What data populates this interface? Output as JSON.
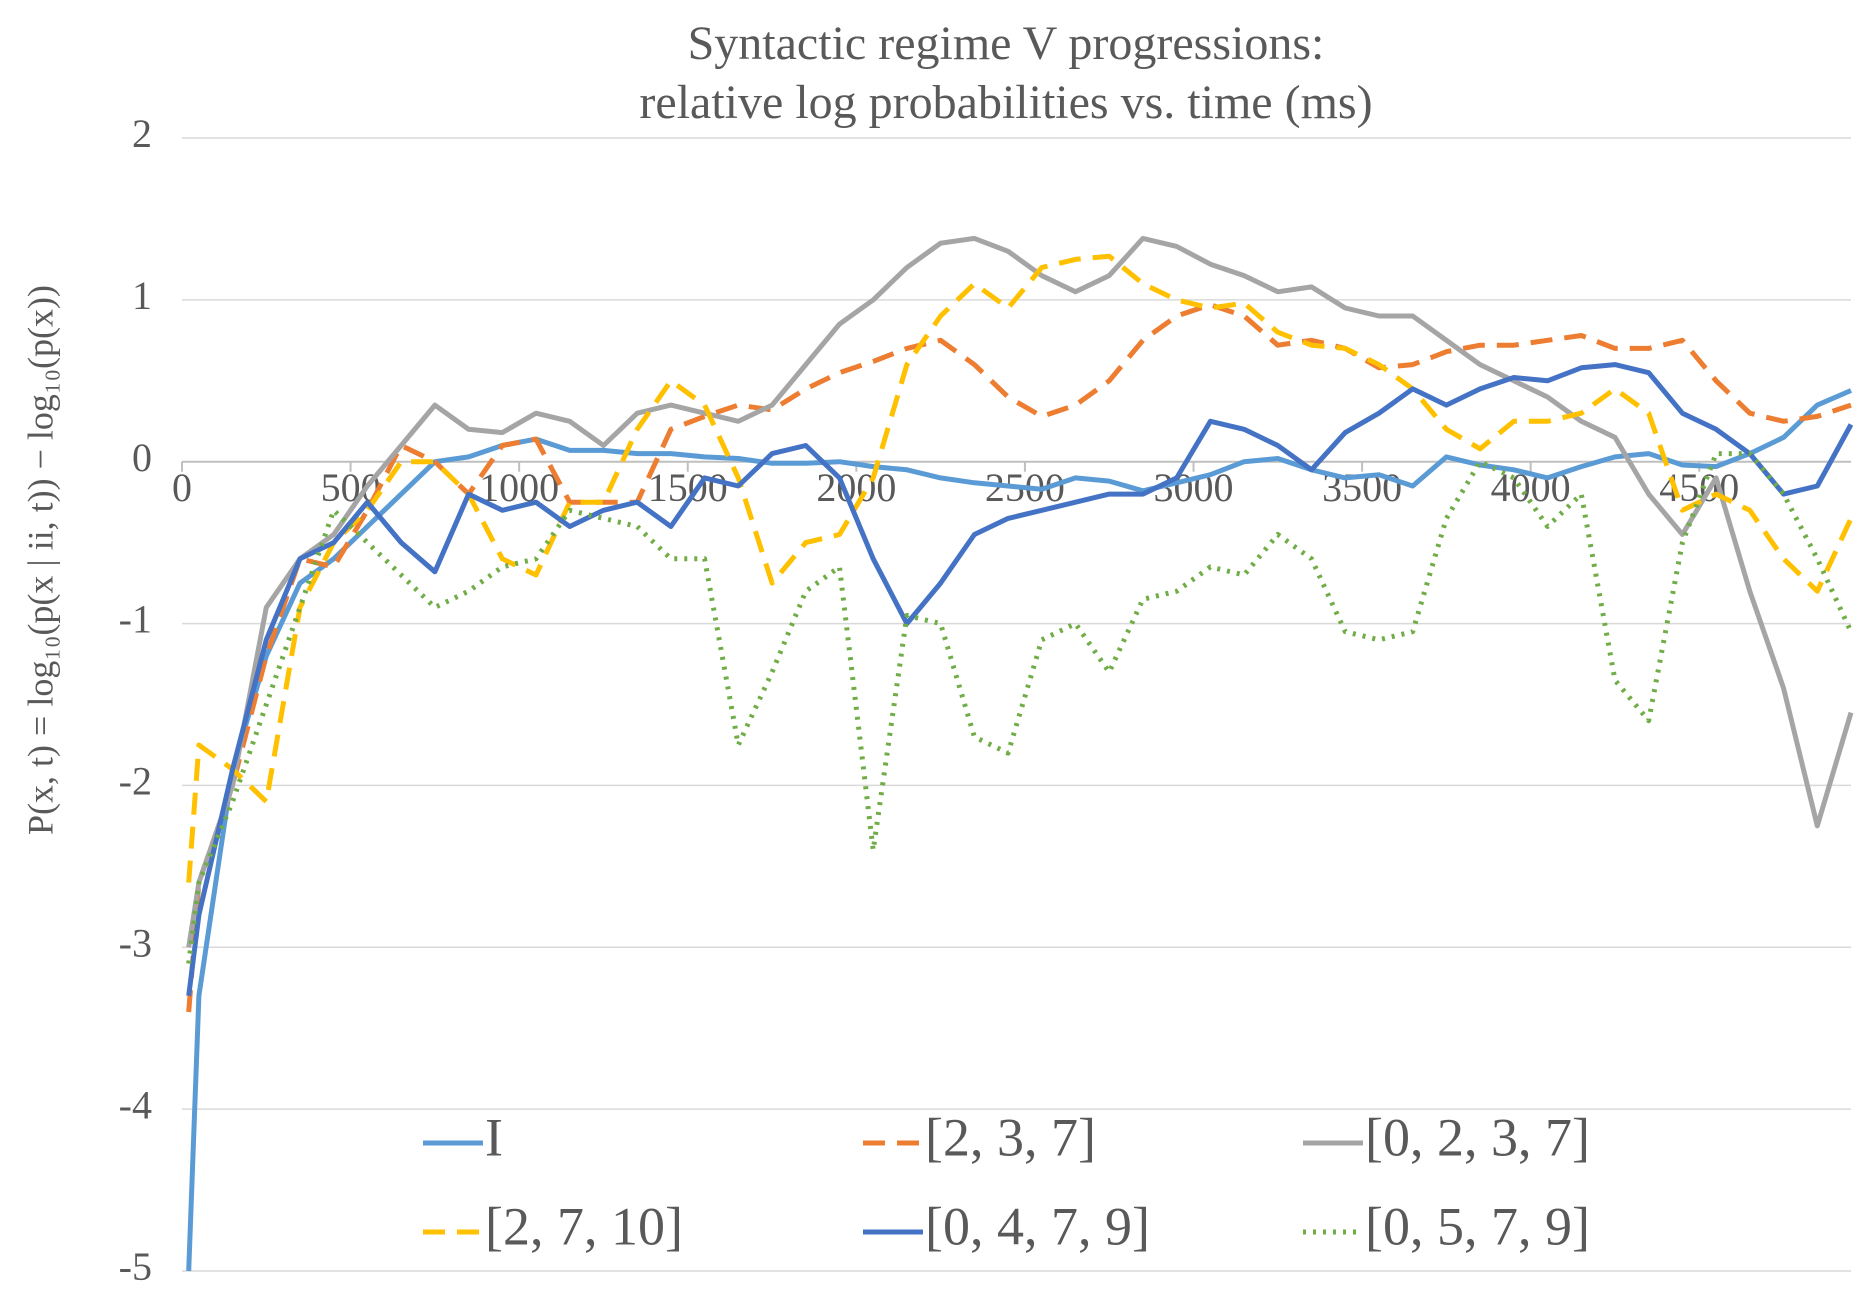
{
  "chart_data": {
    "type": "line",
    "title": "Syntactic regime V progressions:",
    "subtitle": "relative log probabilities vs. time (ms)",
    "y_label": "P(x, t) = log₁₀(p(x | ii, t)) − log₁₀(p(x))",
    "x": [
      20,
      50,
      150,
      250,
      350,
      450,
      550,
      650,
      750,
      850,
      950,
      1050,
      1150,
      1250,
      1350,
      1450,
      1550,
      1650,
      1750,
      1850,
      1950,
      2050,
      2150,
      2250,
      2350,
      2450,
      2550,
      2650,
      2750,
      2850,
      2950,
      3050,
      3150,
      3250,
      3350,
      3450,
      3550,
      3650,
      3750,
      3850,
      3950,
      4050,
      4150,
      4250,
      4350,
      4450,
      4550,
      4650,
      4750,
      4850,
      4950
    ],
    "xlim": [
      0,
      4950
    ],
    "xticks": [
      0,
      500,
      1000,
      1500,
      2000,
      2500,
      3000,
      3500,
      4000,
      4500
    ],
    "ylim": [
      -5,
      2
    ],
    "yticks": [
      -5,
      -4,
      -3,
      -2,
      -1,
      0,
      1,
      2
    ],
    "grid": true,
    "series": [
      {
        "name": "I",
        "color": "#5b9bd5",
        "dash": "solid",
        "values": [
          -5,
          -3.3,
          -1.9,
          -1.2,
          -0.75,
          -0.6,
          -0.4,
          -0.2,
          0,
          0.03,
          0.1,
          0.14,
          0.07,
          0.07,
          0.05,
          0.05,
          0.03,
          0.02,
          -0.01,
          -0.01,
          0,
          -0.03,
          -0.05,
          -0.1,
          -0.13,
          -0.15,
          -0.17,
          -0.1,
          -0.12,
          -0.18,
          -0.13,
          -0.08,
          0,
          0.02,
          -0.05,
          -0.1,
          -0.08,
          -0.15,
          0.03,
          -0.02,
          -0.05,
          -0.1,
          -0.03,
          0.03,
          0.05,
          -0.02,
          -0.03,
          0.05,
          0.15,
          0.35,
          0.44
        ]
      },
      {
        "name": "[2, 3, 7]",
        "color": "#ed7d31",
        "dash": "dash",
        "values": [
          -3.4,
          -2.6,
          -2.0,
          -1.2,
          -0.6,
          -0.65,
          -0.3,
          0.1,
          0,
          -0.2,
          0.1,
          0.14,
          -0.25,
          -0.25,
          -0.25,
          0.2,
          0.28,
          0.35,
          0.32,
          0.45,
          0.55,
          0.62,
          0.7,
          0.75,
          0.6,
          0.4,
          0.28,
          0.35,
          0.5,
          0.75,
          0.9,
          0.97,
          0.9,
          0.72,
          0.75,
          0.7,
          0.58,
          0.6,
          0.68,
          0.72,
          0.72,
          0.75,
          0.78,
          0.7,
          0.7,
          0.75,
          0.5,
          0.3,
          0.25,
          0.28,
          0.35
        ]
      },
      {
        "name": "[0, 2, 3, 7]",
        "color": "#a5a5a5",
        "dash": "solid",
        "values": [
          -3.0,
          -2.6,
          -2.0,
          -0.9,
          -0.6,
          -0.45,
          -0.15,
          0.1,
          0.35,
          0.2,
          0.18,
          0.3,
          0.25,
          0.1,
          0.3,
          0.35,
          0.3,
          0.25,
          0.35,
          0.6,
          0.85,
          1.0,
          1.2,
          1.35,
          1.38,
          1.3,
          1.15,
          1.05,
          1.15,
          1.38,
          1.33,
          1.22,
          1.15,
          1.05,
          1.08,
          0.95,
          0.9,
          0.9,
          0.75,
          0.6,
          0.5,
          0.4,
          0.25,
          0.15,
          -0.2,
          -0.45,
          -0.1,
          -0.8,
          -1.4,
          -2.25,
          -1.55
        ]
      },
      {
        "name": "[2, 7, 10]",
        "color": "#ffc000",
        "dash": "dash",
        "values": [
          -2.6,
          -1.75,
          -1.9,
          -2.1,
          -0.9,
          -0.5,
          -0.3,
          0,
          0,
          -0.2,
          -0.6,
          -0.7,
          -0.25,
          -0.25,
          0.2,
          0.5,
          0.35,
          -0.1,
          -0.75,
          -0.5,
          -0.45,
          -0.1,
          0.6,
          0.9,
          1.1,
          0.95,
          1.2,
          1.25,
          1.27,
          1.1,
          1.0,
          0.95,
          0.98,
          0.8,
          0.72,
          0.7,
          0.6,
          0.45,
          0.2,
          0.08,
          0.25,
          0.25,
          0.3,
          0.45,
          0.3,
          -0.3,
          -0.2,
          -0.3,
          -0.6,
          -0.8,
          -0.35
        ]
      },
      {
        "name": "[0, 4, 7, 9]",
        "color": "#4472c4",
        "dash": "solid",
        "values": [
          -3.3,
          -2.8,
          -1.9,
          -1.1,
          -0.6,
          -0.5,
          -0.25,
          -0.5,
          -0.68,
          -0.2,
          -0.3,
          -0.25,
          -0.4,
          -0.3,
          -0.25,
          -0.4,
          -0.1,
          -0.15,
          0.05,
          0.1,
          -0.1,
          -0.6,
          -1.0,
          -0.75,
          -0.45,
          -0.35,
          -0.3,
          -0.25,
          -0.2,
          -0.2,
          -0.1,
          0.25,
          0.2,
          0.1,
          -0.05,
          0.18,
          0.3,
          0.45,
          0.35,
          0.45,
          0.52,
          0.5,
          0.58,
          0.6,
          0.55,
          0.3,
          0.2,
          0.05,
          -0.2,
          -0.15,
          0.23
        ]
      },
      {
        "name": "[0, 5, 7, 9]",
        "color": "#70ad47",
        "dash": "dot",
        "values": [
          -3.1,
          -2.6,
          -2.1,
          -1.5,
          -0.9,
          -0.3,
          -0.5,
          -0.7,
          -0.9,
          -0.8,
          -0.65,
          -0.6,
          -0.3,
          -0.35,
          -0.4,
          -0.6,
          -0.6,
          -1.75,
          -1.3,
          -0.8,
          -0.65,
          -2.4,
          -0.95,
          -1.0,
          -1.7,
          -1.8,
          -1.1,
          -1.0,
          -1.3,
          -0.85,
          -0.8,
          -0.65,
          -0.7,
          -0.45,
          -0.6,
          -1.05,
          -1.1,
          -1.05,
          -0.35,
          0,
          -0.1,
          -0.4,
          -0.2,
          -1.35,
          -1.6,
          -0.5,
          0.05,
          0.05,
          -0.2,
          -0.6,
          -1.05
        ]
      }
    ]
  }
}
